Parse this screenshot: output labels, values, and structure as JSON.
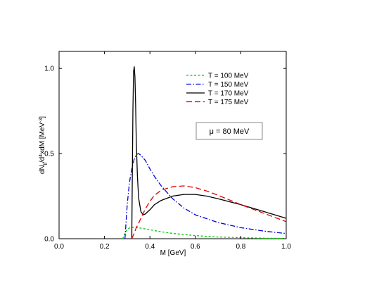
{
  "chart_data": {
    "type": "line",
    "title": "",
    "xlabel": "M [GeV]",
    "ylabel_parts": {
      "base": "dN",
      "sub1": "ll",
      "mid": "/d",
      "sup": "4",
      "tail": "xdM [MeV",
      "sup2": "-3",
      "end": "]"
    },
    "xlim": [
      0.0,
      1.0
    ],
    "ylim": [
      0.0,
      1.1
    ],
    "xticks": [
      "0.0",
      "0.2",
      "0.4",
      "0.6",
      "0.8",
      "1.0"
    ],
    "xtick_values": [
      0.0,
      0.2,
      0.4,
      0.6,
      0.8,
      1.0
    ],
    "yticks": [
      "0.0",
      "0.5",
      "1.0"
    ],
    "ytick_values": [
      0.0,
      0.5,
      1.0
    ],
    "grid": false,
    "legend_position": "top-right",
    "annotation": "μ = 80 MeV",
    "series": [
      {
        "name": "T = 100 MeV",
        "color": "#00cc00",
        "dash": "short-dash",
        "x": [
          0.28,
          0.29,
          0.3,
          0.31,
          0.32,
          0.33,
          0.34,
          0.36,
          0.38,
          0.4,
          0.45,
          0.5,
          0.6,
          0.7,
          0.8,
          0.9,
          1.0
        ],
        "y": [
          0.0,
          0.03,
          0.055,
          0.063,
          0.066,
          0.067,
          0.066,
          0.062,
          0.057,
          0.052,
          0.041,
          0.031,
          0.018,
          0.01,
          0.006,
          0.003,
          0.002
        ]
      },
      {
        "name": "T = 150 MeV",
        "color": "#0000dd",
        "dash": "dash-dot",
        "x": [
          0.29,
          0.3,
          0.31,
          0.32,
          0.33,
          0.34,
          0.35,
          0.36,
          0.38,
          0.4,
          0.42,
          0.45,
          0.5,
          0.55,
          0.6,
          0.7,
          0.8,
          0.9,
          1.0
        ],
        "y": [
          0.0,
          0.2,
          0.33,
          0.41,
          0.465,
          0.495,
          0.5,
          0.49,
          0.46,
          0.41,
          0.365,
          0.31,
          0.235,
          0.18,
          0.14,
          0.095,
          0.065,
          0.045,
          0.03
        ]
      },
      {
        "name": "T = 170 MeV",
        "color": "#000000",
        "dash": "solid",
        "x": [
          0.32,
          0.322,
          0.325,
          0.328,
          0.331,
          0.334,
          0.337,
          0.34,
          0.345,
          0.35,
          0.36,
          0.37,
          0.38,
          0.4,
          0.42,
          0.45,
          0.5,
          0.55,
          0.6,
          0.65,
          0.7,
          0.8,
          0.9,
          1.0
        ],
        "y": [
          0.0,
          0.3,
          0.75,
          0.98,
          1.01,
          0.95,
          0.78,
          0.57,
          0.37,
          0.24,
          0.16,
          0.14,
          0.145,
          0.17,
          0.2,
          0.225,
          0.25,
          0.26,
          0.26,
          0.25,
          0.235,
          0.2,
          0.16,
          0.12
        ]
      },
      {
        "name": "T = 175 MeV",
        "color": "#dd0000",
        "dash": "long-dash",
        "x": [
          0.32,
          0.33,
          0.34,
          0.35,
          0.36,
          0.38,
          0.4,
          0.42,
          0.45,
          0.5,
          0.55,
          0.6,
          0.65,
          0.7,
          0.8,
          0.9,
          1.0
        ],
        "y": [
          0.0,
          0.03,
          0.065,
          0.09,
          0.12,
          0.175,
          0.22,
          0.255,
          0.285,
          0.305,
          0.31,
          0.3,
          0.28,
          0.255,
          0.2,
          0.15,
          0.1
        ]
      }
    ]
  }
}
